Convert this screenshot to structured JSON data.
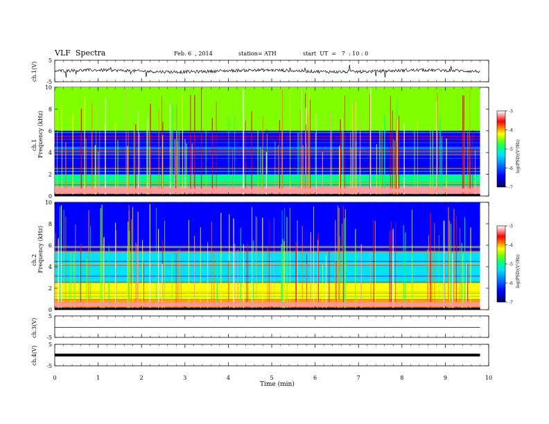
{
  "header": {
    "title": "VLF  Spectra",
    "date": "Feb. 6  , 2014",
    "station": "station= ATH",
    "start": "start  UT  =   7  : 10 : 0"
  },
  "chart_data": [
    {
      "type": "line",
      "panel": "ch1-waveform",
      "ylabel": "ch.1(V)",
      "ylim": [
        -5,
        5
      ],
      "yticks": [
        "5",
        "-5"
      ],
      "description_values": "noisy trace centered near 0 V, spanning 0 to 9.8 min"
    },
    {
      "type": "heatmap",
      "panel": "ch1-spectrogram",
      "ylabel": "Frequency  (kHz)",
      "ylabel2": "ch.1",
      "ylim": [
        0,
        10
      ],
      "yticks": [
        "10",
        "8",
        "6",
        "4",
        "2",
        "0"
      ],
      "colorbar": {
        "label": "log(PSD)(V²/Hz)",
        "ticks": [
          "-3",
          "-4",
          "-5",
          "-6",
          "-7"
        ],
        "range": [
          -7,
          -3
        ]
      },
      "bands_khz": [
        {
          "f_min": 0.2,
          "f_max": 0.9,
          "level": -3.6
        },
        {
          "f_min": 0.9,
          "f_max": 2.0,
          "level": -5.3
        },
        {
          "f_min": 2.0,
          "f_max": 6.0,
          "level": -6.3
        },
        {
          "f_min": 6.0,
          "f_max": 10.0,
          "level": -5.0
        }
      ]
    },
    {
      "type": "heatmap",
      "panel": "ch2-spectrogram",
      "ylabel": "Frequency  (kHz)",
      "ylabel2": "ch.2",
      "ylim": [
        0,
        10
      ],
      "yticks": [
        "10",
        "8",
        "6",
        "4",
        "2",
        "0"
      ],
      "colorbar": {
        "label": "log(PSD)(V²/Hz)",
        "ticks": [
          "-3",
          "-4",
          "-5",
          "-6",
          "-7"
        ],
        "range": [
          -7,
          -3
        ]
      },
      "bands_khz": [
        {
          "f_min": 0.2,
          "f_max": 1.0,
          "level": -4.2
        },
        {
          "f_min": 1.0,
          "f_max": 2.5,
          "level": -4.8
        },
        {
          "f_min": 2.5,
          "f_max": 5.5,
          "level": -5.6
        },
        {
          "f_min": 5.5,
          "f_max": 10.0,
          "level": -6.3
        }
      ]
    },
    {
      "type": "line",
      "panel": "ch3-waveform",
      "ylabel": "ch.3(V)",
      "ylim": [
        -5,
        5
      ],
      "yticks": [
        "5",
        "-5"
      ],
      "level_volts": 0
    },
    {
      "type": "line",
      "panel": "ch4-waveform",
      "ylabel": "ch.4(V)",
      "ylim": [
        -5,
        5
      ],
      "yticks": [
        "5",
        "-5"
      ],
      "level_volts": 0
    }
  ],
  "time_axis": {
    "xlabel": "Time  (min)",
    "xlim": [
      0,
      10
    ],
    "ticks": [
      "0",
      "1",
      "2",
      "3",
      "4",
      "5",
      "6",
      "7",
      "8",
      "9",
      "10"
    ],
    "data_end_min": 9.8
  },
  "colors": {
    "scale": [
      "#000080",
      "#0000ff",
      "#0080ff",
      "#00e0ff",
      "#00ff80",
      "#80ff00",
      "#ffff00",
      "#ff8000",
      "#ff0000",
      "#ff9999",
      "#ffffff"
    ]
  }
}
